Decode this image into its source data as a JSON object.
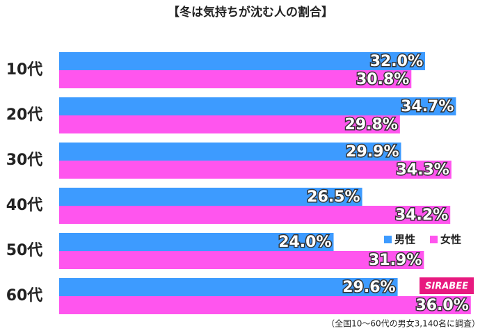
{
  "chart_data": {
    "type": "bar",
    "orientation": "horizontal",
    "title": "【冬は気持ちが沈む人の割合】",
    "categories": [
      "10代",
      "20代",
      "30代",
      "40代",
      "50代",
      "60代"
    ],
    "series": [
      {
        "name": "男性",
        "color": "#3d9bff",
        "values": [
          32.0,
          34.7,
          29.9,
          26.5,
          24.0,
          29.6
        ],
        "value_labels": [
          "32.0%",
          "34.7%",
          "29.9%",
          "26.5%",
          "24.0%",
          "29.6%"
        ]
      },
      {
        "name": "女性",
        "color": "#ff55ee",
        "values": [
          30.8,
          29.8,
          34.3,
          34.2,
          31.9,
          36.0
        ],
        "value_labels": [
          "30.8%",
          "29.8%",
          "34.3%",
          "34.2%",
          "31.9%",
          "36.0%"
        ]
      }
    ],
    "xlim": [
      0,
      36.5
    ],
    "legend": "right",
    "logo": "SIRABEE",
    "note": "（全国10～60代の男女3,140名に調査）"
  }
}
